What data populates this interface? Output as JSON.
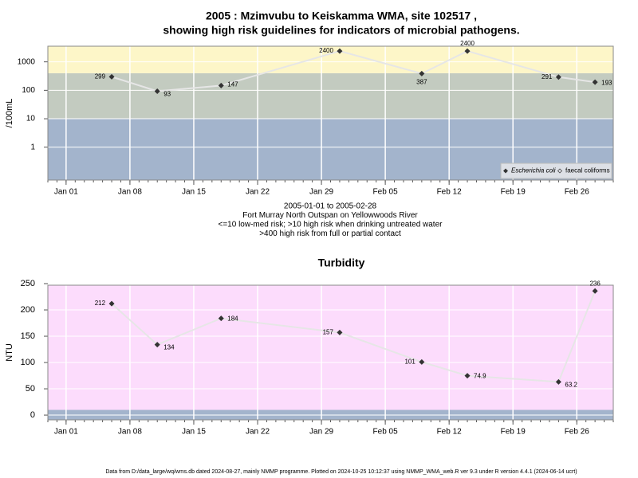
{
  "chart_data": [
    {
      "type": "line",
      "title": [
        "2005 : Mzimvubu to Keiskamma WMA, site 102517 ,",
        "showing high risk guidelines for indicators of microbial pathogens."
      ],
      "ylabel": "/100mL",
      "log": true,
      "x": [
        "2005-01-06",
        "2005-01-11",
        "2005-01-18",
        "2005-01-31",
        "2005-02-09",
        "2005-02-14",
        "2005-02-24",
        "2005-02-28"
      ],
      "series": [
        {
          "name": "Escherichia coli",
          "color": "#333333",
          "values": [
            299,
            93,
            147,
            2400,
            387,
            2400,
            291,
            193
          ]
        },
        {
          "name": "faecal coliforms",
          "color": "#333333",
          "values": [
            null,
            null,
            null,
            null,
            null,
            null,
            null,
            null
          ]
        }
      ],
      "xlim": [
        "2004-12-30",
        "2005-03-02"
      ],
      "xticks": [
        {
          "value": "2005-01-01",
          "label": "Jan 01"
        },
        {
          "value": "2005-01-08",
          "label": "Jan 08"
        },
        {
          "value": "2005-01-15",
          "label": "Jan 15"
        },
        {
          "value": "2005-01-22",
          "label": "Jan 22"
        },
        {
          "value": "2005-01-29",
          "label": "Jan 29"
        },
        {
          "value": "2005-02-05",
          "label": "Feb 05"
        },
        {
          "value": "2005-02-12",
          "label": "Feb 12"
        },
        {
          "value": "2005-02-19",
          "label": "Feb 19"
        },
        {
          "value": "2005-02-26",
          "label": "Feb 26"
        }
      ],
      "ylim": [
        0.07,
        3550
      ],
      "yticks": [
        1,
        10,
        100,
        1000
      ],
      "bands": [
        {
          "max": 10,
          "color": "#a3b4cc"
        },
        {
          "min": 10,
          "max": 400,
          "color": "#c3cbc0"
        },
        {
          "min": 400,
          "color": "#fdf6c8"
        }
      ],
      "notes": [
        "2005-01-01 to 2005-02-28",
        "Fort Murray North Outspan on Yellowwoods River",
        "<=10 low-med risk; >10 high risk when drinking untreated water",
        ">400 high risk from full or partial contact"
      ],
      "grid": true,
      "legend": "lower right"
    },
    {
      "type": "line",
      "title": [
        "Turbidity"
      ],
      "ylabel": "NTU",
      "log": false,
      "x": [
        "2005-01-06",
        "2005-01-11",
        "2005-01-18",
        "2005-01-31",
        "2005-02-09",
        "2005-02-14",
        "2005-02-24",
        "2005-02-28"
      ],
      "series": [
        {
          "color": "#333333",
          "values": [
            212,
            134,
            184,
            157,
            101,
            74.9,
            63.2,
            236
          ]
        }
      ],
      "xlim": [
        "2004-12-30",
        "2005-03-02"
      ],
      "xticks": [
        {
          "value": "2005-01-01",
          "label": "Jan 01"
        },
        {
          "value": "2005-01-08",
          "label": "Jan 08"
        },
        {
          "value": "2005-01-15",
          "label": "Jan 15"
        },
        {
          "value": "2005-01-22",
          "label": "Jan 22"
        },
        {
          "value": "2005-01-29",
          "label": "Jan 29"
        },
        {
          "value": "2005-02-05",
          "label": "Feb 05"
        },
        {
          "value": "2005-02-12",
          "label": "Feb 12"
        },
        {
          "value": "2005-02-19",
          "label": "Feb 19"
        },
        {
          "value": "2005-02-26",
          "label": "Feb 26"
        }
      ],
      "ylim": [
        -9,
        247
      ],
      "yticks": [
        0,
        50,
        100,
        150,
        200,
        250
      ],
      "bands": [
        {
          "max": 10,
          "color": "#a3b4cc"
        },
        {
          "min": 10,
          "color": "#fcdcfc"
        }
      ],
      "grid": true
    }
  ],
  "footer": "Data from D:/data_large/wq/wms.db dated 2024-08-27, mainly NMMP programme. Plotted on 2024-10-25 10:12:37 using NMMP_WMA_web.R ver 9.3 under R version 4.4.1 (2024-06-14 ucrt)"
}
